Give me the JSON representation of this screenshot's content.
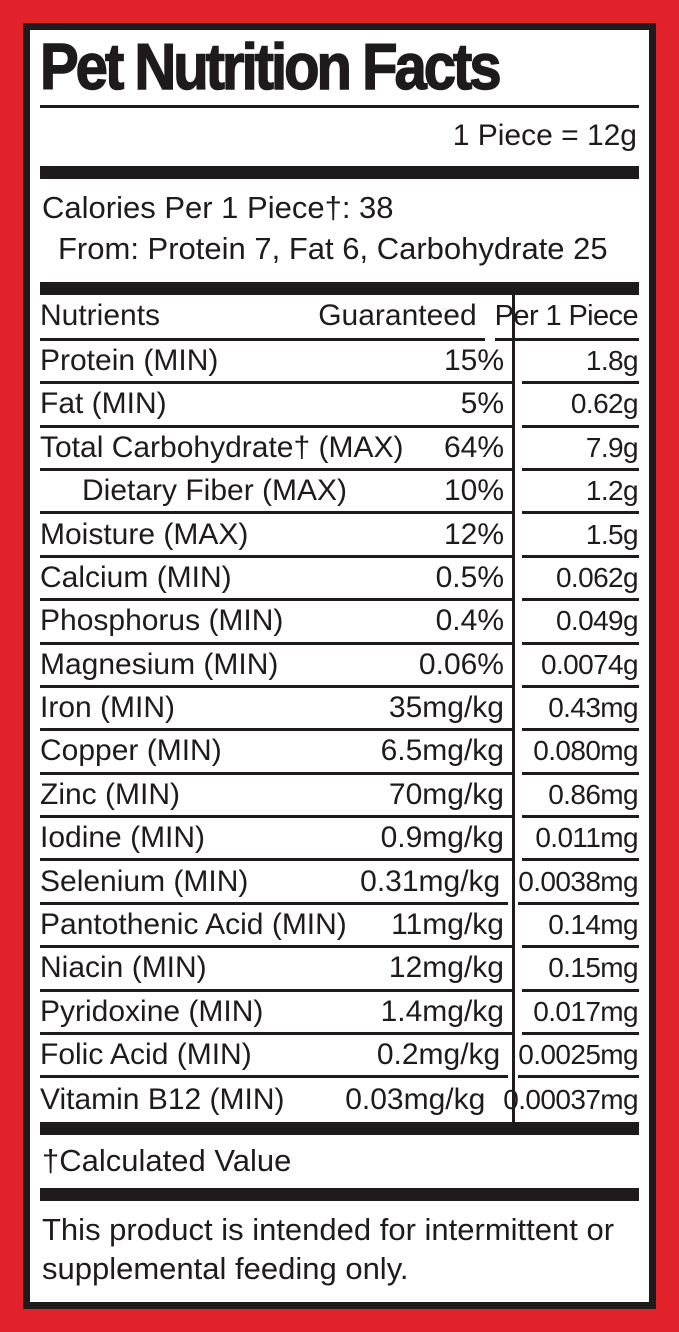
{
  "colors": {
    "red": "#E2222A",
    "ink": "#1F1B1C",
    "paper": "#FFFFFF"
  },
  "header": {
    "title": "Pet Nutrition Facts",
    "serving": "1 Piece = 12g"
  },
  "calories": {
    "line1": "Calories Per 1 Piece†: 38",
    "line2": "From: Protein 7, Fat 6, Carbohydrate 25"
  },
  "table": {
    "headers": {
      "nutrients": "Nutrients",
      "guaranteed": "Guaranteed",
      "per_piece": "Per 1 Piece"
    },
    "rows": [
      {
        "name": "Protein (MIN)",
        "guaranteed": "15%",
        "per_piece": "1.8g"
      },
      {
        "name": "Fat (MIN)",
        "guaranteed": "5%",
        "per_piece": "0.62g"
      },
      {
        "name": "Total Carbohydrate† (MAX)",
        "guaranteed": "64%",
        "per_piece": "7.9g"
      },
      {
        "name": "Dietary Fiber (MAX)",
        "guaranteed": "10%",
        "per_piece": "1.2g"
      },
      {
        "name": "Moisture (MAX)",
        "guaranteed": "12%",
        "per_piece": "1.5g"
      },
      {
        "name": "Calcium (MIN)",
        "guaranteed": "0.5%",
        "per_piece": "0.062g"
      },
      {
        "name": "Phosphorus (MIN)",
        "guaranteed": "0.4%",
        "per_piece": "0.049g"
      },
      {
        "name": "Magnesium (MIN)",
        "guaranteed": "0.06%",
        "per_piece": "0.0074g"
      },
      {
        "name": "Iron (MIN)",
        "guaranteed": "35mg/kg",
        "per_piece": "0.43mg"
      },
      {
        "name": "Copper (MIN)",
        "guaranteed": "6.5mg/kg",
        "per_piece": "0.080mg"
      },
      {
        "name": "Zinc (MIN)",
        "guaranteed": "70mg/kg",
        "per_piece": "0.86mg"
      },
      {
        "name": "Iodine (MIN)",
        "guaranteed": "0.9mg/kg",
        "per_piece": "0.011mg"
      },
      {
        "name": "Selenium (MIN)",
        "guaranteed": "0.31mg/kg",
        "per_piece": "0.0038mg"
      },
      {
        "name": "Pantothenic Acid (MIN)",
        "guaranteed": "11mg/kg",
        "per_piece": "0.14mg"
      },
      {
        "name": "Niacin (MIN)",
        "guaranteed": "12mg/kg",
        "per_piece": "0.15mg"
      },
      {
        "name": "Pyridoxine (MIN)",
        "guaranteed": "1.4mg/kg",
        "per_piece": "0.017mg"
      },
      {
        "name": "Folic Acid (MIN)",
        "guaranteed": "0.2mg/kg",
        "per_piece": "0.0025mg"
      },
      {
        "name": "Vitamin B12 (MIN)",
        "guaranteed": "0.03mg/kg",
        "per_piece": "0.00037mg"
      }
    ]
  },
  "footnote": "†Calculated Value",
  "feeding_statement": "This product is intended for intermittent or supplemental feeding only."
}
